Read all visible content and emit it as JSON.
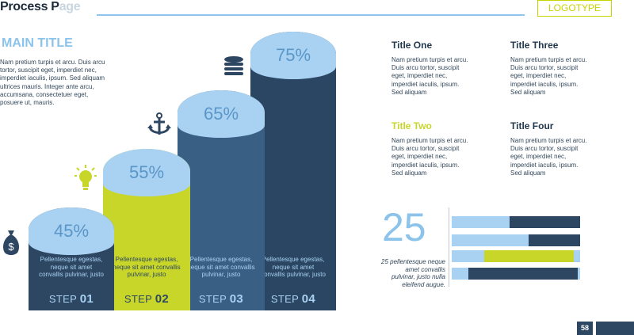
{
  "header": {
    "title_part1": "Process P",
    "title_part2": "age",
    "logotype": "LOGOTYPE"
  },
  "intro": {
    "title": "MAIN TITLE",
    "body": "Nam pretium turpis et arcu. Duis arcu tortor, suscipit eget, imperdiet nec, imperdiet iaculis, ipsum. Sed aliquam ultrices mauris. Integer ante arcu, accumsana, consectetuer eget, posuere ut, mauris."
  },
  "steps": [
    {
      "percent": "45%",
      "desc": "Pellentesque egestas, neque sit amet convallis pulvinar, justo",
      "step_word": "STEP",
      "step_num": "01",
      "color": "#2d4763",
      "cap_color": "#a9d2f2",
      "step_text_color": "#a9d2f2"
    },
    {
      "percent": "55%",
      "desc": "Pellentesque egestas, neque sit amet convallis pulvinar, justo",
      "step_word": "STEP",
      "step_num": "02",
      "color": "#c8d62a",
      "cap_color": "#a9d2f2",
      "step_text_color": "#2d4763"
    },
    {
      "percent": "65%",
      "desc": "Pellentesque egestas, neque sit amet convallis pulvinar, justo",
      "step_word": "STEP",
      "step_num": "03",
      "color": "#3a5f84",
      "cap_color": "#a9d2f2",
      "step_text_color": "#a9d2f2"
    },
    {
      "percent": "75%",
      "desc": "Pellentesque egestas, neque sit amet convallis pulvinar, justo",
      "step_word": "STEP",
      "step_num": "04",
      "color": "#2a4663",
      "cap_color": "#a9d2f2",
      "step_text_color": "#a9d2f2"
    }
  ],
  "icons": [
    "money-bag-icon",
    "lightbulb-icon",
    "anchor-icon",
    "coins-icon"
  ],
  "titles": [
    {
      "title": "Title One",
      "body": "Nam pretium turpis et arcu. Duis arcu tortor, suscipit eget, imperdiet nec, imperdiet iaculis, ipsum. Sed aliquam",
      "dot_color": "#22384e"
    },
    {
      "title": "Title Three",
      "body": "Nam pretium turpis et arcu. Duis arcu tortor, suscipit eget, imperdiet nec, imperdiet iaculis, ipsum. Sed aliquam",
      "dot_color": "#3a5f84"
    },
    {
      "title": "Title Two",
      "body": "Nam pretium turpis et arcu. Duis arcu tortor, suscipit eget, imperdiet nec, imperdiet iaculis, ipsum. Sed aliquam",
      "dot_color": "#c8d62a"
    },
    {
      "title": "Title Four",
      "body": "Nam pretium turpis et arcu. Duis arcu tortor, suscipit eget, imperdiet nec, imperdiet iaculis, ipsum. Sed aliquam",
      "dot_color": "#22384e"
    }
  ],
  "stat": {
    "number": "25",
    "desc": "25 pellentesque neque amet convallis pulvinar, justo nulla eleifend augue."
  },
  "hbars": [
    {
      "fraction": 0.55,
      "fill_color": "#2d4763"
    },
    {
      "fraction": 0.4,
      "fill_color": "#2d4763"
    },
    {
      "fraction": 0.7,
      "fill_color": "#c8d62a"
    },
    {
      "fraction": 0.85,
      "fill_color": "#2d4763"
    }
  ],
  "footer": {
    "page": "58"
  }
}
